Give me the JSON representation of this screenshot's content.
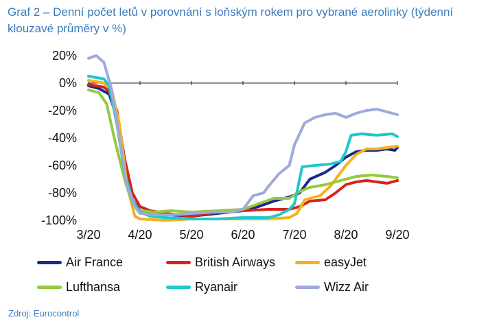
{
  "title": "Graf 2 – Denní počet letů v porovnání s loňským rokem pro vybrané aerolinky (týdenní klouzavé průměry v %)",
  "source": "Zdroj: Eurocontrol",
  "chart_data": {
    "type": "line",
    "title": "Graf 2 – Denní počet letů v porovnání s loňským rokem pro vybrané aerolinky (týdenní klouzavé průměry v %)",
    "xlabel": "",
    "ylabel": "",
    "x_ticks": [
      "3/20",
      "4/20",
      "5/20",
      "6/20",
      "7/20",
      "8/20",
      "9/20"
    ],
    "y_ticks": [
      "20%",
      "0%",
      "-20%",
      "-40%",
      "-60%",
      "-80%",
      "-100%"
    ],
    "xlim": [
      0,
      6
    ],
    "ylim": [
      -100,
      20
    ],
    "grid": false,
    "legend_position": "bottom",
    "series": [
      {
        "name": "Air France",
        "color": "#1a2a8a",
        "points": [
          [
            0,
            -2
          ],
          [
            0.2,
            -4
          ],
          [
            0.4,
            -8
          ],
          [
            0.55,
            -25
          ],
          [
            0.7,
            -60
          ],
          [
            0.85,
            -85
          ],
          [
            1.0,
            -93
          ],
          [
            1.3,
            -96
          ],
          [
            1.6,
            -96
          ],
          [
            2.0,
            -97
          ],
          [
            2.5,
            -95
          ],
          [
            3.0,
            -93
          ],
          [
            3.3,
            -90
          ],
          [
            3.6,
            -86
          ],
          [
            3.9,
            -83
          ],
          [
            4.1,
            -80
          ],
          [
            4.3,
            -70
          ],
          [
            4.6,
            -65
          ],
          [
            4.8,
            -60
          ],
          [
            5.0,
            -54
          ],
          [
            5.2,
            -50
          ],
          [
            5.4,
            -49
          ],
          [
            5.6,
            -49
          ],
          [
            5.8,
            -48
          ],
          [
            5.95,
            -49
          ],
          [
            6.0,
            -47
          ]
        ]
      },
      {
        "name": "British Airways",
        "color": "#d6241c",
        "points": [
          [
            0,
            -1
          ],
          [
            0.3,
            -3
          ],
          [
            0.4,
            -6
          ],
          [
            0.55,
            -20
          ],
          [
            0.7,
            -55
          ],
          [
            0.85,
            -80
          ],
          [
            1.0,
            -90
          ],
          [
            1.2,
            -93
          ],
          [
            1.5,
            -95
          ],
          [
            2.0,
            -97
          ],
          [
            2.5,
            -94
          ],
          [
            3.0,
            -93
          ],
          [
            3.5,
            -92
          ],
          [
            3.9,
            -92
          ],
          [
            4.1,
            -90
          ],
          [
            4.3,
            -86
          ],
          [
            4.6,
            -85
          ],
          [
            4.8,
            -80
          ],
          [
            5.0,
            -74
          ],
          [
            5.2,
            -72
          ],
          [
            5.4,
            -71
          ],
          [
            5.6,
            -72
          ],
          [
            5.8,
            -73
          ],
          [
            6.0,
            -71
          ]
        ]
      },
      {
        "name": "easyJet",
        "color": "#f5b21b",
        "points": [
          [
            0,
            2
          ],
          [
            0.3,
            0
          ],
          [
            0.45,
            -5
          ],
          [
            0.6,
            -30
          ],
          [
            0.75,
            -75
          ],
          [
            0.9,
            -97
          ],
          [
            1.0,
            -99
          ],
          [
            1.5,
            -100
          ],
          [
            2.0,
            -99
          ],
          [
            2.5,
            -99
          ],
          [
            3.0,
            -99
          ],
          [
            3.5,
            -99
          ],
          [
            3.9,
            -98
          ],
          [
            4.05,
            -95
          ],
          [
            4.2,
            -85
          ],
          [
            4.5,
            -82
          ],
          [
            4.7,
            -75
          ],
          [
            4.9,
            -65
          ],
          [
            5.0,
            -60
          ],
          [
            5.2,
            -52
          ],
          [
            5.4,
            -48
          ],
          [
            5.6,
            -48
          ],
          [
            5.8,
            -47
          ],
          [
            6.0,
            -46
          ]
        ]
      },
      {
        "name": "Lufthansa",
        "color": "#95c93d",
        "points": [
          [
            0,
            -5
          ],
          [
            0.2,
            -7
          ],
          [
            0.35,
            -15
          ],
          [
            0.5,
            -40
          ],
          [
            0.7,
            -70
          ],
          [
            0.85,
            -88
          ],
          [
            1.0,
            -93
          ],
          [
            1.3,
            -94
          ],
          [
            1.6,
            -93
          ],
          [
            2.0,
            -94
          ],
          [
            2.5,
            -93
          ],
          [
            3.0,
            -92
          ],
          [
            3.3,
            -88
          ],
          [
            3.6,
            -84
          ],
          [
            3.9,
            -84
          ],
          [
            4.1,
            -79
          ],
          [
            4.3,
            -76
          ],
          [
            4.6,
            -74
          ],
          [
            4.8,
            -72
          ],
          [
            5.0,
            -70
          ],
          [
            5.2,
            -68
          ],
          [
            5.5,
            -67
          ],
          [
            5.8,
            -68
          ],
          [
            6.0,
            -69
          ]
        ]
      },
      {
        "name": "Ryanair",
        "color": "#1fc8cc",
        "points": [
          [
            0,
            5
          ],
          [
            0.3,
            3
          ],
          [
            0.4,
            -2
          ],
          [
            0.55,
            -30
          ],
          [
            0.7,
            -65
          ],
          [
            0.85,
            -85
          ],
          [
            1.0,
            -94
          ],
          [
            1.2,
            -97
          ],
          [
            1.5,
            -98
          ],
          [
            2.0,
            -99
          ],
          [
            2.5,
            -99
          ],
          [
            3.0,
            -98
          ],
          [
            3.5,
            -98
          ],
          [
            3.7,
            -96
          ],
          [
            3.9,
            -92
          ],
          [
            4.0,
            -88
          ],
          [
            4.1,
            -70
          ],
          [
            4.15,
            -61
          ],
          [
            4.4,
            -60
          ],
          [
            4.7,
            -59
          ],
          [
            4.9,
            -57
          ],
          [
            5.0,
            -50
          ],
          [
            5.1,
            -38
          ],
          [
            5.3,
            -37
          ],
          [
            5.6,
            -38
          ],
          [
            5.9,
            -37
          ],
          [
            6.0,
            -39
          ]
        ]
      },
      {
        "name": "Wizz Air",
        "color": "#9fa9dc",
        "points": [
          [
            0,
            18
          ],
          [
            0.15,
            20
          ],
          [
            0.3,
            15
          ],
          [
            0.45,
            -5
          ],
          [
            0.6,
            -40
          ],
          [
            0.75,
            -75
          ],
          [
            0.9,
            -90
          ],
          [
            1.0,
            -95
          ],
          [
            1.3,
            -96
          ],
          [
            1.6,
            -96
          ],
          [
            2.0,
            -95
          ],
          [
            2.4,
            -94
          ],
          [
            2.8,
            -94
          ],
          [
            3.0,
            -92
          ],
          [
            3.2,
            -82
          ],
          [
            3.4,
            -80
          ],
          [
            3.5,
            -75
          ],
          [
            3.7,
            -66
          ],
          [
            3.9,
            -60
          ],
          [
            4.0,
            -45
          ],
          [
            4.2,
            -29
          ],
          [
            4.4,
            -25
          ],
          [
            4.6,
            -23
          ],
          [
            4.8,
            -22
          ],
          [
            5.0,
            -25
          ],
          [
            5.2,
            -22
          ],
          [
            5.4,
            -20
          ],
          [
            5.6,
            -19
          ],
          [
            5.8,
            -21
          ],
          [
            6.0,
            -23
          ]
        ]
      }
    ]
  },
  "legend": [
    {
      "label": "Air France",
      "color": "#1a2a8a"
    },
    {
      "label": "British Airways",
      "color": "#d6241c"
    },
    {
      "label": "easyJet",
      "color": "#f5b21b"
    },
    {
      "label": "Lufthansa",
      "color": "#95c93d"
    },
    {
      "label": "Ryanair",
      "color": "#1fc8cc"
    },
    {
      "label": "Wizz Air",
      "color": "#9fa9dc"
    }
  ]
}
